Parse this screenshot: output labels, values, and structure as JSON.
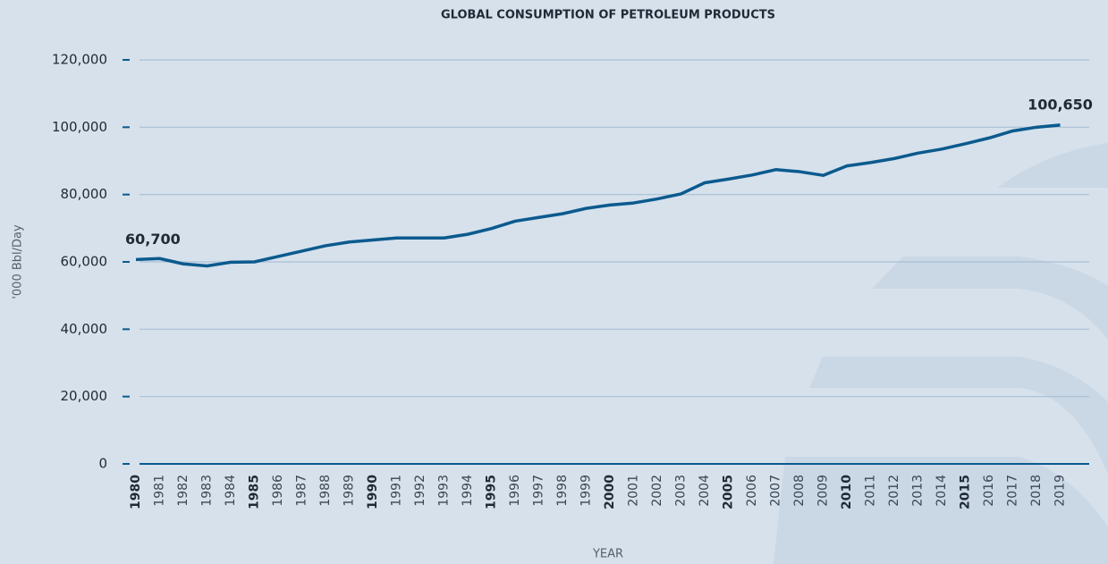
{
  "chart_data": {
    "type": "line",
    "title": "GLOBAL CONSUMPTION OF PETROLEUM PRODUCTS",
    "y_label": "'000 Bbl/Day",
    "x_label": "YEAR",
    "categories": [
      "1980",
      "1981",
      "1982",
      "1983",
      "1984",
      "1985",
      "1986",
      "1987",
      "1988",
      "1989",
      "1990",
      "1991",
      "1992",
      "1993",
      "1994",
      "1995",
      "1996",
      "1997",
      "1998",
      "1999",
      "2000",
      "2001",
      "2002",
      "2003",
      "2004",
      "2005",
      "2006",
      "2007",
      "2008",
      "2009",
      "2010",
      "2011",
      "2012",
      "2013",
      "2014",
      "2015",
      "2016",
      "2017",
      "2018",
      "2019"
    ],
    "values": [
      60700,
      61000,
      59400,
      58800,
      59900,
      60000,
      61600,
      63200,
      64800,
      65900,
      66500,
      67100,
      67100,
      67100,
      68200,
      69900,
      72100,
      73200,
      74300,
      75900,
      76900,
      77500,
      78700,
      80200,
      83500,
      84600,
      85800,
      87400,
      86800,
      85700,
      88500,
      89500,
      90700,
      92300,
      93500,
      95100,
      96800,
      98900,
      100000,
      100650
    ],
    "value_labels": [
      "60,700",
      null,
      null,
      null,
      null,
      null,
      null,
      null,
      null,
      null,
      null,
      null,
      null,
      null,
      null,
      null,
      null,
      null,
      null,
      null,
      null,
      null,
      null,
      null,
      null,
      null,
      null,
      null,
      null,
      null,
      null,
      null,
      null,
      null,
      null,
      null,
      null,
      null,
      null,
      "100,650"
    ],
    "color": "#0b5a8e",
    "ylim": [
      0,
      120000
    ],
    "yticks": [
      {
        "value": 0,
        "label": "0"
      },
      {
        "value": 20000,
        "label": "20,000"
      },
      {
        "value": 40000,
        "label": "40,000"
      },
      {
        "value": 60000,
        "label": "60,000"
      },
      {
        "value": 80000,
        "label": "80,000"
      },
      {
        "value": 100000,
        "label": "100,000"
      },
      {
        "value": 120000,
        "label": "120,000"
      }
    ],
    "grid": true
  }
}
